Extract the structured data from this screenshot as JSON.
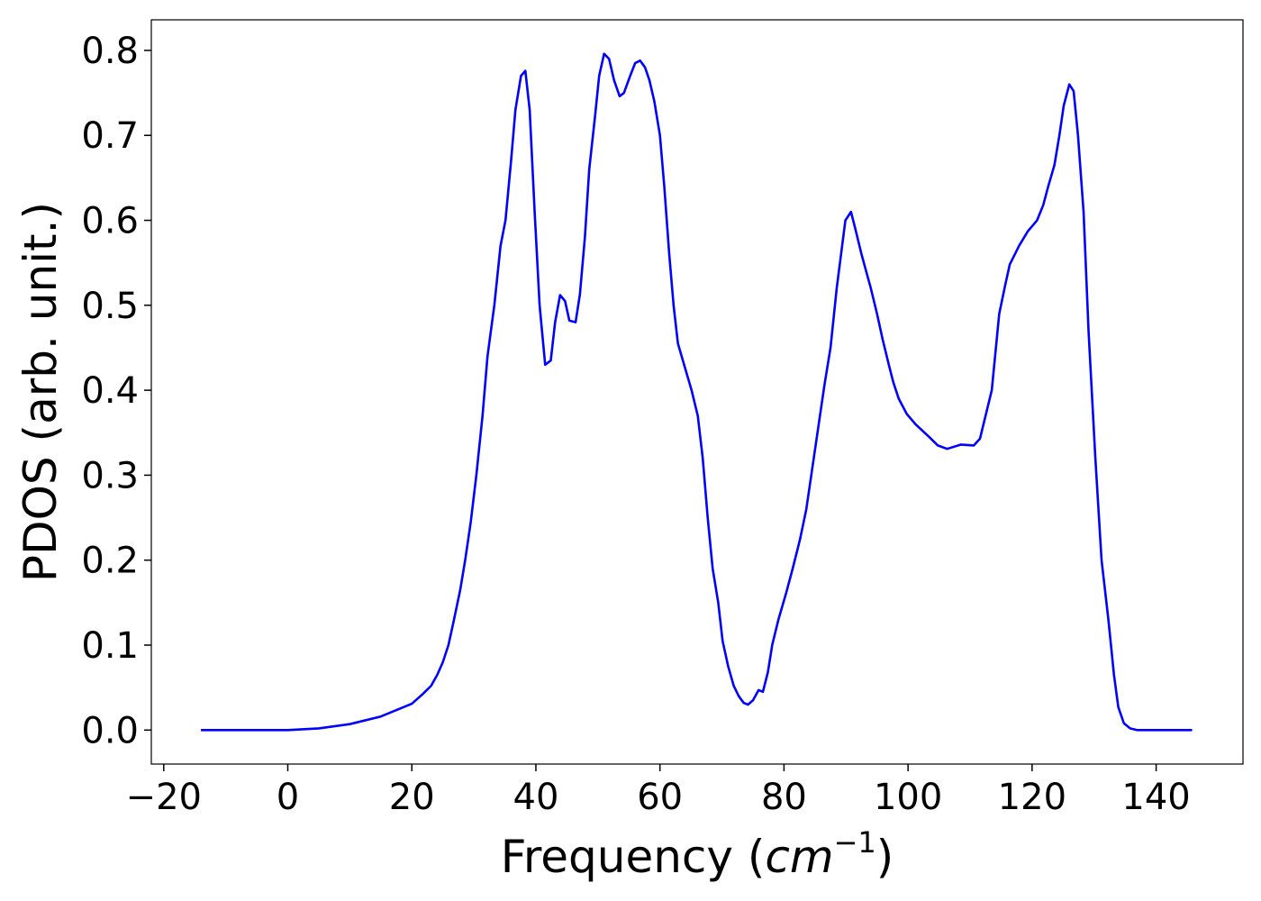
{
  "chart_data": {
    "type": "line",
    "xlabel": [
      "Frequency (",
      "cm",
      "−1",
      ")"
    ],
    "ylabel": "PDOS (arb. unit.)",
    "color": "#0000ff",
    "xlim": [
      -22,
      154
    ],
    "ylim": [
      -0.04,
      0.836
    ],
    "xticks": [
      {
        "value": -20,
        "label": "−20"
      },
      0,
      20,
      40,
      60,
      80,
      100,
      120,
      140
    ],
    "yticks": [
      {
        "value": 0,
        "label": "0.0"
      },
      0.1,
      0.2,
      0.3,
      0.4,
      0.5,
      0.6,
      0.7,
      0.8
    ],
    "x": [
      -14,
      0,
      5,
      10,
      15,
      20,
      21.7,
      23.1,
      24.1,
      25.0,
      25.9,
      26.8,
      27.8,
      28.6,
      29.5,
      30.4,
      31.4,
      32.2,
      33.3,
      34.3,
      35.1,
      36.0,
      36.7,
      37.6,
      38.3,
      39.0,
      39.8,
      40.6,
      41.5,
      42.4,
      43.1,
      43.9,
      44.7,
      45.4,
      46.4,
      47.1,
      47.9,
      48.6,
      49.5,
      50.2,
      51.0,
      51.8,
      52.6,
      53.5,
      54.2,
      55.2,
      56.0,
      56.8,
      57.6,
      58.3,
      59.1,
      60.0,
      60.7,
      61.5,
      62.2,
      62.9,
      63.9,
      65.1,
      66.1,
      66.9,
      67.7,
      68.5,
      69.4,
      70.1,
      71.0,
      71.9,
      72.7,
      73.5,
      74.2,
      75.0,
      75.9,
      76.6,
      77.4,
      78.1,
      79.1,
      80.3,
      81.4,
      82.6,
      83.6,
      84.6,
      85.6,
      86.5,
      87.5,
      88.5,
      89.2,
      89.9,
      90.8,
      91.5,
      92.5,
      94.0,
      95.0,
      95.9,
      96.9,
      97.6,
      98.5,
      99.8,
      101.2,
      103.4,
      104.8,
      106.3,
      108.5,
      110.6,
      111.6,
      113.5,
      114.7,
      115.7,
      116.4,
      117.9,
      119.3,
      120.8,
      121.8,
      122.6,
      123.6,
      124.4,
      125.1,
      126.0,
      126.7,
      127.4,
      128.3,
      129.1,
      130.2,
      131.2,
      132.3,
      133.2,
      133.9,
      134.8,
      135.8,
      136.9,
      145.8
    ],
    "values": [
      0,
      0,
      0.002,
      0.007,
      0.016,
      0.031,
      0.042,
      0.052,
      0.065,
      0.08,
      0.1,
      0.13,
      0.165,
      0.2,
      0.245,
      0.3,
      0.37,
      0.44,
      0.5,
      0.57,
      0.6,
      0.67,
      0.73,
      0.77,
      0.776,
      0.73,
      0.61,
      0.5,
      0.43,
      0.435,
      0.48,
      0.512,
      0.505,
      0.482,
      0.48,
      0.513,
      0.58,
      0.66,
      0.72,
      0.77,
      0.796,
      0.79,
      0.765,
      0.746,
      0.75,
      0.77,
      0.785,
      0.788,
      0.78,
      0.765,
      0.74,
      0.7,
      0.64,
      0.56,
      0.5,
      0.455,
      0.43,
      0.4,
      0.37,
      0.32,
      0.25,
      0.19,
      0.15,
      0.105,
      0.075,
      0.052,
      0.04,
      0.032,
      0.03,
      0.035,
      0.047,
      0.045,
      0.068,
      0.1,
      0.13,
      0.16,
      0.19,
      0.225,
      0.26,
      0.31,
      0.36,
      0.405,
      0.45,
      0.52,
      0.56,
      0.6,
      0.61,
      0.59,
      0.56,
      0.52,
      0.49,
      0.46,
      0.43,
      0.41,
      0.39,
      0.372,
      0.36,
      0.345,
      0.335,
      0.331,
      0.336,
      0.335,
      0.343,
      0.4,
      0.49,
      0.525,
      0.548,
      0.57,
      0.587,
      0.6,
      0.618,
      0.64,
      0.665,
      0.7,
      0.735,
      0.76,
      0.752,
      0.7,
      0.61,
      0.47,
      0.32,
      0.2,
      0.13,
      0.065,
      0.027,
      0.008,
      0.002,
      0,
      0
    ]
  }
}
